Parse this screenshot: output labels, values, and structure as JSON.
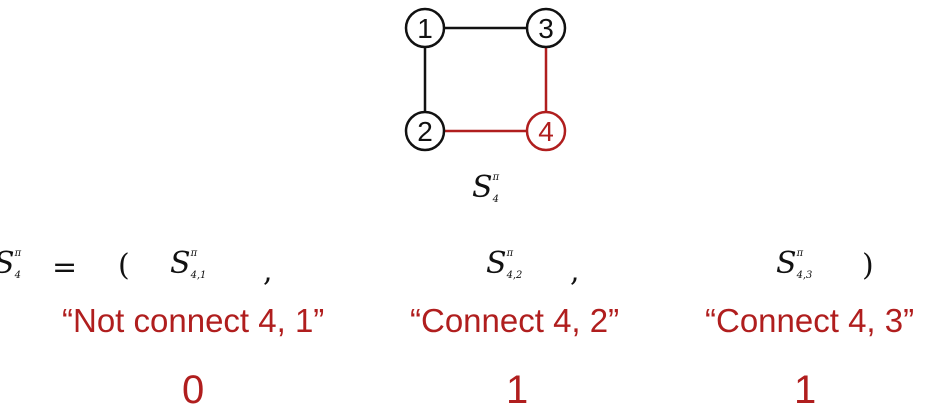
{
  "graph": {
    "nodes": [
      {
        "id": "1",
        "label": "1",
        "color": "#111111"
      },
      {
        "id": "2",
        "label": "2",
        "color": "#111111"
      },
      {
        "id": "3",
        "label": "3",
        "color": "#111111"
      },
      {
        "id": "4",
        "label": "4",
        "color": "#b01e1e"
      }
    ],
    "edges": [
      {
        "from": "1",
        "to": "3",
        "color": "#111111"
      },
      {
        "from": "1",
        "to": "2",
        "color": "#111111"
      },
      {
        "from": "3",
        "to": "4",
        "color": "#b01e1e"
      },
      {
        "from": "2",
        "to": "4",
        "color": "#b01e1e"
      }
    ],
    "caption": {
      "base": "S",
      "sup": "π",
      "sub": "4"
    }
  },
  "equation": {
    "lhs": {
      "base": "S",
      "sup": "π",
      "sub": "4"
    },
    "equals": "=",
    "open_paren": "(",
    "close_paren": ")",
    "comma": ",",
    "terms": [
      {
        "base": "S",
        "sup": "π",
        "sub": "4,1",
        "description": "“Not connect 4, 1”",
        "value": "0"
      },
      {
        "base": "S",
        "sup": "π",
        "sub": "4,2",
        "description": "“Connect 4, 2”",
        "value": "1"
      },
      {
        "base": "S",
        "sup": "π",
        "sub": "4,3",
        "description": "“Connect 4, 3”",
        "value": "1"
      }
    ]
  },
  "colors": {
    "black": "#111111",
    "red": "#b01e1e"
  }
}
